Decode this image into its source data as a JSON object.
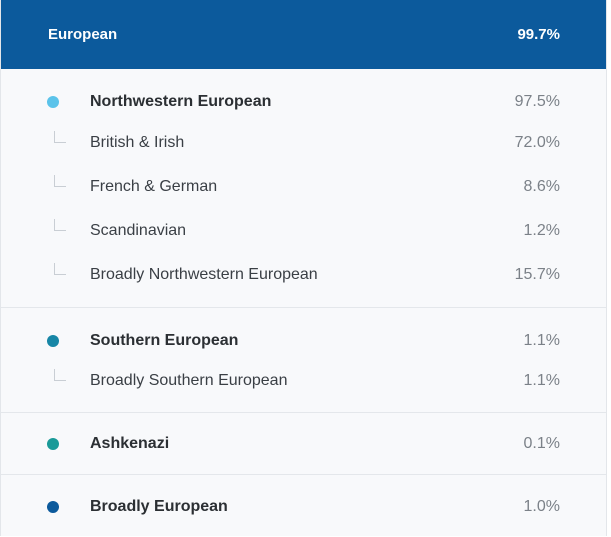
{
  "header": {
    "label": "European",
    "percent": "99.7%"
  },
  "groups": [
    {
      "main": {
        "label": "Northwestern European",
        "percent": "97.5%",
        "color": "#5bc3ea"
      },
      "subs": [
        {
          "label": "British & Irish",
          "percent": "72.0%"
        },
        {
          "label": "French & German",
          "percent": "8.6%"
        },
        {
          "label": "Scandinavian",
          "percent": "1.2%"
        },
        {
          "label": "Broadly Northwestern European",
          "percent": "15.7%"
        }
      ]
    },
    {
      "main": {
        "label": "Southern European",
        "percent": "1.1%",
        "color": "#1786a6"
      },
      "subs": [
        {
          "label": "Broadly Southern European",
          "percent": "1.1%"
        }
      ]
    },
    {
      "main": {
        "label": "Ashkenazi",
        "percent": "0.1%",
        "color": "#1a9a98"
      },
      "subs": []
    },
    {
      "main": {
        "label": "Broadly European",
        "percent": "1.0%",
        "color": "#0c5a9c"
      },
      "subs": []
    }
  ]
}
